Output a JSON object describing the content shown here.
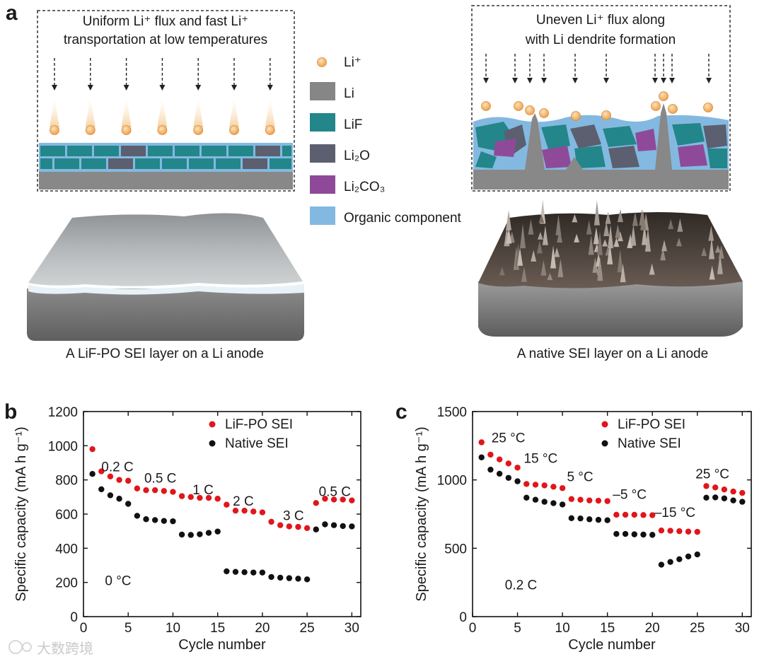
{
  "panel_labels": {
    "a": "a",
    "b": "b",
    "c": "c"
  },
  "panel_a": {
    "left_caption_line1": "Uniform Li⁺ flux and fast Li⁺",
    "left_caption_line2": "transportation at low temperatures",
    "right_caption_line1": "Uneven Li⁺ flux along",
    "right_caption_line2": "with Li dendrite formation",
    "left_anode_label": "A LiF-PO SEI layer on a Li anode",
    "right_anode_label": "A native SEI layer on a Li anode",
    "legend": [
      {
        "label": "Li⁺",
        "color": "#f3b26a",
        "shape": "circle"
      },
      {
        "label": "Li",
        "color": "#868686",
        "shape": "square"
      },
      {
        "label": "LiF",
        "color": "#23868a",
        "shape": "square"
      },
      {
        "label": "Li₂O",
        "color": "#5c5f6f",
        "shape": "square"
      },
      {
        "label": "Li₂CO₃",
        "color": "#8e4a98",
        "shape": "square"
      },
      {
        "label": "Organic component",
        "color": "#83b9e0",
        "shape": "square"
      }
    ]
  },
  "watermark": "大数跨境",
  "chart_data": [
    {
      "type": "scatter",
      "panel": "b",
      "xlabel": "Cycle number",
      "ylabel": "Specific capacity (mA h g⁻¹)",
      "xlim": [
        0,
        31
      ],
      "ylim": [
        0,
        1200
      ],
      "xticks": [
        0,
        5,
        10,
        15,
        20,
        25,
        30
      ],
      "yticks": [
        0,
        200,
        400,
        600,
        800,
        1000,
        1200
      ],
      "legend_position": "top-right",
      "annotations": [
        {
          "text": "0.2 C",
          "x": 2.0,
          "y": 850
        },
        {
          "text": "0.5 C",
          "x": 6.8,
          "y": 785
        },
        {
          "text": "1 C",
          "x": 12.2,
          "y": 715
        },
        {
          "text": "2 C",
          "x": 16.7,
          "y": 650
        },
        {
          "text": "3 C",
          "x": 22.3,
          "y": 565
        },
        {
          "text": "0.5 C",
          "x": 26.3,
          "y": 705
        },
        {
          "text": "0 °C",
          "x": 2.4,
          "y": 185
        }
      ],
      "series": [
        {
          "name": "LiF-PO SEI",
          "color": "#e0161b",
          "x": [
            1,
            2,
            3,
            4,
            5,
            6,
            7,
            8,
            9,
            10,
            11,
            12,
            13,
            14,
            15,
            16,
            17,
            18,
            19,
            20,
            21,
            22,
            23,
            24,
            25,
            26,
            27,
            28,
            29,
            30
          ],
          "y": [
            980,
            850,
            820,
            800,
            795,
            750,
            740,
            740,
            735,
            730,
            705,
            700,
            695,
            695,
            690,
            655,
            620,
            620,
            615,
            610,
            555,
            535,
            528,
            525,
            518,
            665,
            690,
            685,
            685,
            680
          ]
        },
        {
          "name": "Native SEI",
          "color": "#111111",
          "x": [
            1,
            2,
            3,
            4,
            5,
            6,
            7,
            8,
            9,
            10,
            11,
            12,
            13,
            14,
            15,
            16,
            17,
            18,
            19,
            20,
            21,
            22,
            23,
            24,
            25,
            26,
            27,
            28,
            29,
            30
          ],
          "y": [
            835,
            745,
            710,
            690,
            660,
            590,
            570,
            565,
            560,
            558,
            480,
            478,
            482,
            490,
            498,
            265,
            262,
            260,
            258,
            258,
            232,
            228,
            225,
            222,
            218,
            510,
            540,
            535,
            530,
            528
          ]
        }
      ]
    },
    {
      "type": "scatter",
      "panel": "c",
      "xlabel": "Cycle number",
      "ylabel": "Specific capacity (mA h g⁻¹)",
      "xlim": [
        0,
        31
      ],
      "ylim": [
        0,
        1500
      ],
      "xticks": [
        0,
        5,
        10,
        15,
        20,
        25,
        30
      ],
      "yticks": [
        0,
        500,
        1000,
        1500
      ],
      "legend_position": "top-right",
      "annotations": [
        {
          "text": "25 °C",
          "x": 2.1,
          "y": 1275
        },
        {
          "text": "15 °C",
          "x": 5.7,
          "y": 1125
        },
        {
          "text": "5 °C",
          "x": 10.5,
          "y": 990
        },
        {
          "text": "–5 °C",
          "x": 15.6,
          "y": 860
        },
        {
          "text": "–15 °C",
          "x": 20.2,
          "y": 730
        },
        {
          "text": "25 °C",
          "x": 24.8,
          "y": 1010
        },
        {
          "text": "0.2 C",
          "x": 3.6,
          "y": 200
        }
      ],
      "series": [
        {
          "name": "LiF-PO SEI",
          "color": "#e0161b",
          "x": [
            1,
            2,
            3,
            4,
            5,
            6,
            7,
            8,
            9,
            10,
            11,
            12,
            13,
            14,
            15,
            16,
            17,
            18,
            19,
            20,
            21,
            22,
            23,
            24,
            25,
            26,
            27,
            28,
            29,
            30
          ],
          "y": [
            1275,
            1185,
            1150,
            1120,
            1090,
            970,
            965,
            960,
            950,
            940,
            860,
            855,
            850,
            848,
            845,
            745,
            745,
            745,
            743,
            742,
            630,
            628,
            625,
            622,
            620,
            955,
            945,
            930,
            915,
            905
          ]
        },
        {
          "name": "Native SEI",
          "color": "#111111",
          "x": [
            1,
            2,
            3,
            4,
            5,
            6,
            7,
            8,
            9,
            10,
            11,
            12,
            13,
            14,
            15,
            16,
            17,
            18,
            19,
            20,
            21,
            22,
            23,
            24,
            25,
            26,
            27,
            28,
            29,
            30
          ],
          "y": [
            1165,
            1075,
            1045,
            1015,
            990,
            870,
            855,
            840,
            830,
            820,
            720,
            718,
            712,
            708,
            705,
            605,
            605,
            602,
            600,
            598,
            380,
            400,
            420,
            440,
            455,
            870,
            872,
            865,
            850,
            840
          ]
        }
      ]
    }
  ]
}
